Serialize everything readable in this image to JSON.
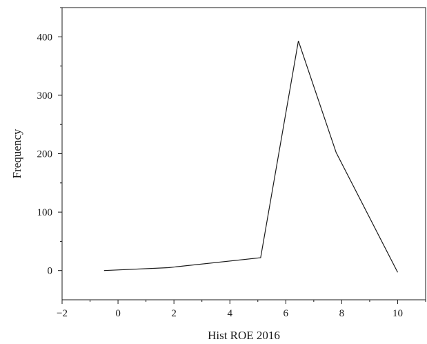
{
  "chart_data": {
    "type": "line",
    "title": "",
    "xlabel": "Hist ROE 2016",
    "ylabel": "Frequency",
    "xlim": [
      -2,
      11
    ],
    "ylim": [
      -50,
      450
    ],
    "x_ticks": [
      -2,
      0,
      2,
      4,
      6,
      8,
      10
    ],
    "x_tick_labels": [
      "−2",
      "0",
      "2",
      "4",
      "6",
      "8",
      "10"
    ],
    "y_ticks": [
      0,
      100,
      200,
      300,
      400
    ],
    "y_tick_labels": [
      "0",
      "100",
      "200",
      "300",
      "400"
    ],
    "grid": false,
    "legend": "none",
    "line_color": "#1a1a1a",
    "series": [
      {
        "x": [
          -0.5,
          1.8,
          5.1,
          6.45,
          7.8,
          10.0
        ],
        "y": [
          0,
          5,
          22,
          393,
          202,
          -3
        ]
      }
    ]
  }
}
